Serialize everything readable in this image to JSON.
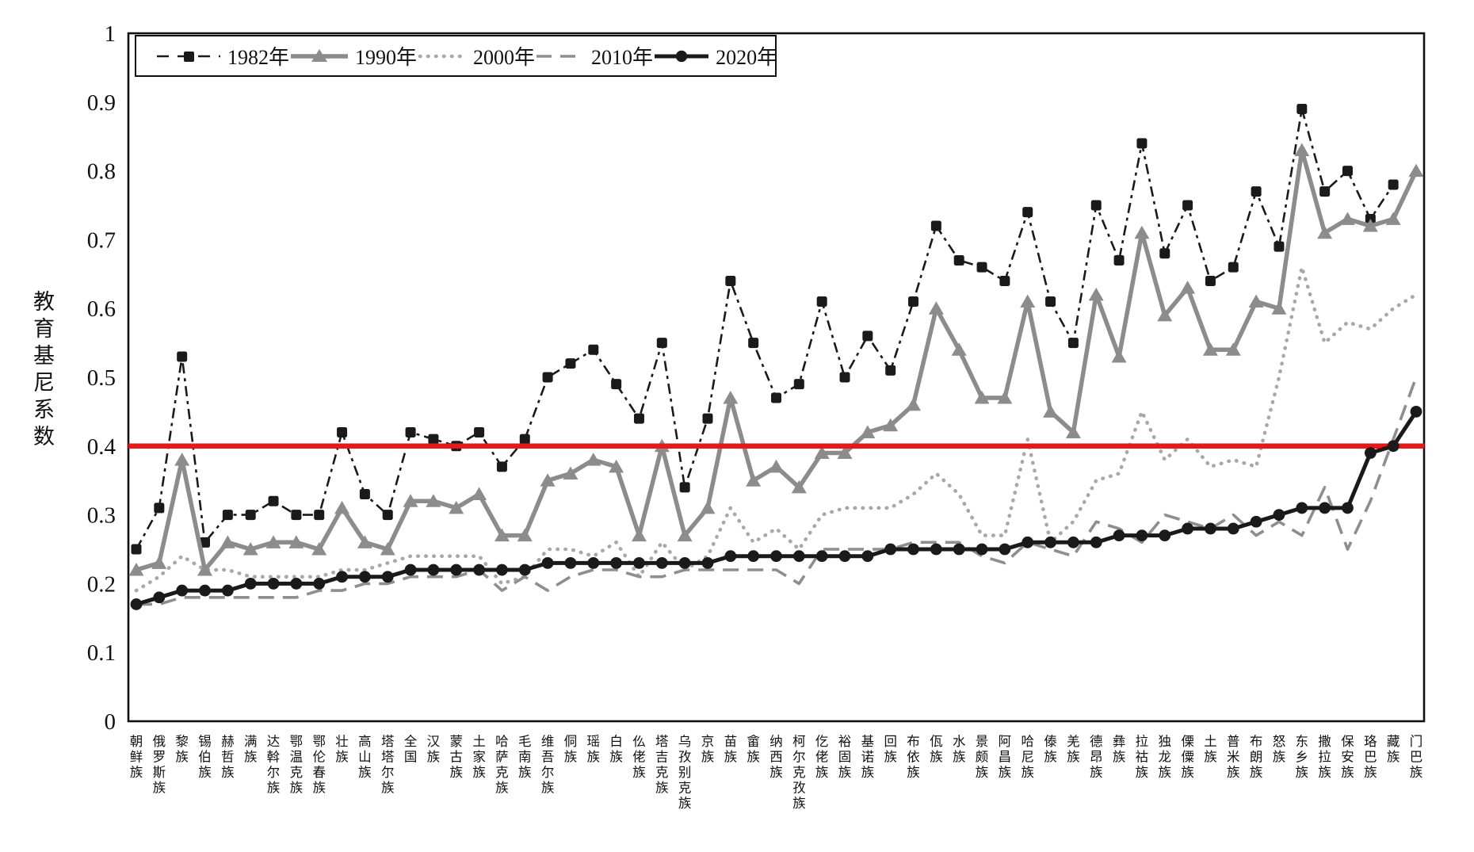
{
  "chart_data": {
    "type": "line",
    "title": "",
    "xlabel": "",
    "ylabel": "教育基尼系数",
    "ylim": [
      0,
      1
    ],
    "ytick_step": 0.1,
    "ytick_labels": [
      "0",
      "0.1",
      "0.2",
      "0.3",
      "0.4",
      "0.5",
      "0.6",
      "0.7",
      "0.8",
      "0.9",
      "1"
    ],
    "grid": false,
    "legend_position": "top-left-inside",
    "reference_line": {
      "value": 0.4,
      "color": "#f01414"
    },
    "categories": [
      "朝鲜族",
      "俄罗斯族",
      "黎族",
      "锡伯族",
      "赫哲族",
      "满族",
      "达斡尔族",
      "鄂温克族",
      "鄂伦春族",
      "壮族",
      "高山族",
      "塔塔尔族",
      "全国",
      "汉族",
      "蒙古族",
      "土家族",
      "哈萨克族",
      "毛南族",
      "维吾尔族",
      "侗族",
      "瑶族",
      "白族",
      "仫佬族",
      "塔吉克族",
      "乌孜别克族",
      "京族",
      "苗族",
      "畲族",
      "纳西族",
      "柯尔克孜族",
      "仡佬族",
      "裕固族",
      "基诺族",
      "回族",
      "布依族",
      "佤族",
      "水族",
      "景颇族",
      "阿昌族",
      "哈尼族",
      "傣族",
      "羌族",
      "德昂族",
      "彝族",
      "拉祜族",
      "独龙族",
      "傈僳族",
      "土族",
      "普米族",
      "布朗族",
      "怒族",
      "东乡族",
      "撒拉族",
      "保安族",
      "珞巴族",
      "藏族",
      "门巴族"
    ],
    "series": [
      {
        "name": "1982年",
        "color": "#1a1a1a",
        "style": "dashdot",
        "marker": "square",
        "line_width": 2.6,
        "values": [
          0.25,
          0.31,
          0.53,
          0.26,
          0.3,
          0.3,
          0.32,
          0.3,
          0.3,
          0.42,
          0.33,
          0.3,
          0.42,
          0.41,
          0.4,
          0.42,
          0.37,
          0.41,
          0.5,
          0.52,
          0.54,
          0.49,
          0.44,
          0.55,
          0.34,
          0.44,
          0.64,
          0.55,
          0.47,
          0.49,
          0.61,
          0.5,
          0.56,
          0.51,
          0.61,
          0.72,
          0.67,
          0.66,
          0.64,
          0.74,
          0.61,
          0.55,
          0.75,
          0.67,
          0.84,
          0.68,
          0.75,
          0.64,
          0.66,
          0.77,
          0.69,
          0.89,
          0.77,
          0.8,
          0.73,
          0.78,
          null
        ]
      },
      {
        "name": "1990年",
        "color": "#8c8c8c",
        "style": "solid",
        "marker": "triangle",
        "line_width": 5.5,
        "values": [
          0.22,
          0.23,
          0.38,
          0.22,
          0.26,
          0.25,
          0.26,
          0.26,
          0.25,
          0.31,
          0.26,
          0.25,
          0.32,
          0.32,
          0.31,
          0.33,
          0.27,
          0.27,
          0.35,
          0.36,
          0.38,
          0.37,
          0.27,
          0.4,
          0.27,
          0.31,
          0.47,
          0.35,
          0.37,
          0.34,
          0.39,
          0.39,
          0.42,
          0.43,
          0.46,
          0.6,
          0.54,
          0.47,
          0.47,
          0.61,
          0.45,
          0.42,
          0.62,
          0.53,
          0.71,
          0.59,
          0.63,
          0.54,
          0.54,
          0.61,
          0.6,
          0.83,
          0.71,
          0.73,
          0.72,
          0.73,
          0.8
        ]
      },
      {
        "name": "2000年",
        "color": "#a8a8a8",
        "style": "dotted",
        "marker": "none",
        "line_width": 4.6,
        "values": [
          0.19,
          0.21,
          0.24,
          0.22,
          0.22,
          0.21,
          0.21,
          0.21,
          0.21,
          0.22,
          0.22,
          0.23,
          0.24,
          0.24,
          0.24,
          0.24,
          0.2,
          0.21,
          0.25,
          0.25,
          0.24,
          0.26,
          0.21,
          0.26,
          0.22,
          0.24,
          0.31,
          0.26,
          0.28,
          0.25,
          0.3,
          0.31,
          0.31,
          0.31,
          0.33,
          0.36,
          0.33,
          0.27,
          0.27,
          0.41,
          0.26,
          0.29,
          0.35,
          0.36,
          0.45,
          0.38,
          0.41,
          0.37,
          0.38,
          0.37,
          0.5,
          0.66,
          0.55,
          0.58,
          0.57,
          0.6,
          0.62
        ]
      },
      {
        "name": "2010年",
        "color": "#8e8e8e",
        "style": "dashed",
        "marker": "none",
        "line_width": 3.6,
        "values": [
          0.17,
          0.17,
          0.18,
          0.18,
          0.18,
          0.18,
          0.18,
          0.18,
          0.19,
          0.19,
          0.2,
          0.2,
          0.21,
          0.21,
          0.21,
          0.22,
          0.19,
          0.21,
          0.19,
          0.21,
          0.22,
          0.22,
          0.21,
          0.21,
          0.22,
          0.22,
          0.22,
          0.22,
          0.22,
          0.2,
          0.25,
          0.25,
          0.25,
          0.25,
          0.26,
          0.26,
          0.26,
          0.24,
          0.23,
          0.26,
          0.25,
          0.24,
          0.29,
          0.28,
          0.26,
          0.3,
          0.29,
          0.28,
          0.3,
          0.27,
          0.29,
          0.27,
          0.34,
          0.25,
          0.32,
          0.41,
          0.5
        ]
      },
      {
        "name": "2020年",
        "color": "#1a1a1a",
        "style": "solid",
        "marker": "circle",
        "line_width": 5,
        "values": [
          0.17,
          0.18,
          0.19,
          0.19,
          0.19,
          0.2,
          0.2,
          0.2,
          0.2,
          0.21,
          0.21,
          0.21,
          0.22,
          0.22,
          0.22,
          0.22,
          0.22,
          0.22,
          0.23,
          0.23,
          0.23,
          0.23,
          0.23,
          0.23,
          0.23,
          0.23,
          0.24,
          0.24,
          0.24,
          0.24,
          0.24,
          0.24,
          0.24,
          0.25,
          0.25,
          0.25,
          0.25,
          0.25,
          0.25,
          0.26,
          0.26,
          0.26,
          0.26,
          0.27,
          0.27,
          0.27,
          0.28,
          0.28,
          0.28,
          0.29,
          0.3,
          0.31,
          0.31,
          0.31,
          0.39,
          0.4,
          0.45
        ]
      }
    ]
  }
}
